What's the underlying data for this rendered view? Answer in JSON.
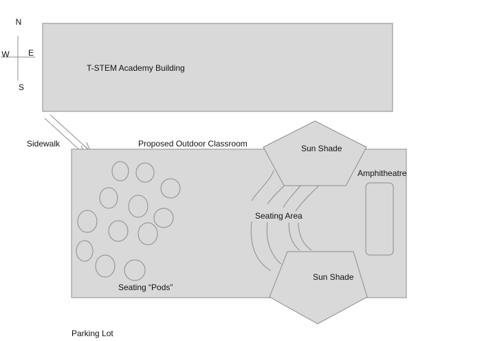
{
  "compass": {
    "north": "N",
    "south": "S",
    "east": "E",
    "west": "W"
  },
  "labels": {
    "building": "T-STEM Academy Building",
    "sidewalk": "Sidewalk",
    "outdoor_classroom": "Proposed Outdoor Classroom",
    "sun_shade_top": "Sun Shade",
    "sun_shade_bottom": "Sun Shade",
    "amphitheatre": "Amphitheatre",
    "seating_area": "Seating Area",
    "seating_pods": "Seating “Pods”",
    "parking_lot": "Parking Lot"
  },
  "colors": {
    "fill": "#d9d9d9",
    "stroke": "#8c8c8c",
    "text": "#111111"
  }
}
